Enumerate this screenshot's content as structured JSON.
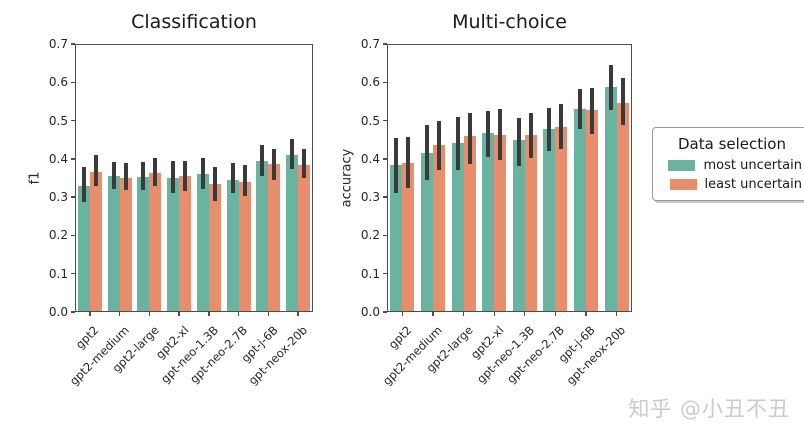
{
  "watermark": {
    "text": "知乎 @小丑不丑"
  },
  "colors": {
    "most_uncertain": "#69b3a0",
    "least_uncertain": "#e88e6d",
    "error_bar": "#3a3a3a",
    "spine": "#4d4d4d",
    "watermark": "#cbcbcb"
  },
  "legend": {
    "title": "Data selection",
    "items": [
      {
        "label": "most uncertain",
        "color": "#69b3a0"
      },
      {
        "label": "least uncertain",
        "color": "#e88e6d"
      }
    ]
  },
  "chart_data": [
    {
      "type": "bar",
      "title": "Classification",
      "xlabel": "",
      "ylabel": "f1",
      "ylim": [
        0.0,
        0.7
      ],
      "ytick_step": 0.1,
      "grid": false,
      "categories": [
        "gpt2",
        "gpt2-medium",
        "gpt2-large",
        "gpt2-xl",
        "gpt-neo-1.3B",
        "gpt-neo-2.7B",
        "gpt-j-6B",
        "gpt-neox-20b"
      ],
      "series": [
        {
          "name": "most uncertain",
          "values": [
            0.33,
            0.355,
            0.353,
            0.351,
            0.361,
            0.346,
            0.394,
            0.411
          ],
          "err_low": [
            0.288,
            0.32,
            0.318,
            0.312,
            0.32,
            0.312,
            0.356,
            0.374
          ],
          "err_high": [
            0.379,
            0.392,
            0.392,
            0.394,
            0.403,
            0.388,
            0.435,
            0.452
          ]
        },
        {
          "name": "least uncertain",
          "values": [
            0.366,
            0.351,
            0.364,
            0.354,
            0.334,
            0.34,
            0.386,
            0.385
          ],
          "err_low": [
            0.328,
            0.319,
            0.328,
            0.316,
            0.29,
            0.303,
            0.346,
            0.349
          ],
          "err_high": [
            0.41,
            0.389,
            0.401,
            0.394,
            0.38,
            0.384,
            0.425,
            0.426
          ]
        }
      ]
    },
    {
      "type": "bar",
      "title": "Multi-choice",
      "xlabel": "",
      "ylabel": "accuracy",
      "ylim": [
        0.0,
        0.7
      ],
      "ytick_step": 0.1,
      "grid": false,
      "categories": [
        "gpt2",
        "gpt2-medium",
        "gpt2-large",
        "gpt2-xl",
        "gpt-neo-1.3B",
        "gpt-neo-2.7B",
        "gpt-j-6B",
        "gpt-neox-20b"
      ],
      "series": [
        {
          "name": "most uncertain",
          "values": [
            0.384,
            0.415,
            0.441,
            0.468,
            0.45,
            0.478,
            0.53,
            0.588
          ],
          "err_low": [
            0.312,
            0.345,
            0.372,
            0.406,
            0.381,
            0.42,
            0.478,
            0.528
          ],
          "err_high": [
            0.455,
            0.489,
            0.509,
            0.526,
            0.508,
            0.532,
            0.583,
            0.645
          ]
        },
        {
          "name": "least uncertain",
          "values": [
            0.389,
            0.436,
            0.459,
            0.463,
            0.462,
            0.483,
            0.528,
            0.547
          ],
          "err_low": [
            0.325,
            0.37,
            0.386,
            0.396,
            0.403,
            0.425,
            0.466,
            0.488
          ],
          "err_high": [
            0.457,
            0.499,
            0.521,
            0.531,
            0.521,
            0.544,
            0.585,
            0.611
          ]
        }
      ]
    }
  ]
}
